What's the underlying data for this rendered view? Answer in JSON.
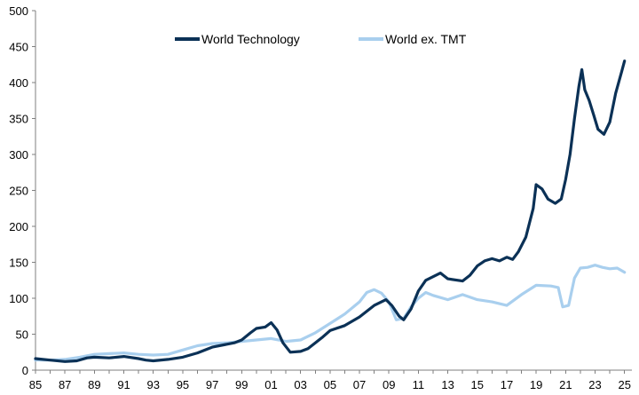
{
  "chart_data": {
    "type": "line",
    "xlim": [
      1985,
      2025.5
    ],
    "ylim": [
      0,
      500
    ],
    "y_ticks": [
      "0",
      "50",
      "100",
      "150",
      "200",
      "250",
      "300",
      "350",
      "400",
      "450",
      "500"
    ],
    "x_ticks": [
      "85",
      "87",
      "89",
      "91",
      "93",
      "95",
      "97",
      "99",
      "01",
      "03",
      "05",
      "07",
      "09",
      "11",
      "13",
      "15",
      "17",
      "19",
      "21",
      "23",
      "25"
    ],
    "grid": false,
    "legend_position": "top-center",
    "series": [
      {
        "name": "World Technology",
        "color": "#0b3156",
        "points": [
          [
            1985.0,
            16
          ],
          [
            1986.0,
            14
          ],
          [
            1987.0,
            12
          ],
          [
            1987.8,
            13
          ],
          [
            1988.5,
            17
          ],
          [
            1989.0,
            18
          ],
          [
            1990.0,
            17
          ],
          [
            1991.0,
            19
          ],
          [
            1992.0,
            16
          ],
          [
            1992.5,
            14
          ],
          [
            1993.0,
            13
          ],
          [
            1994.0,
            15
          ],
          [
            1995.0,
            18
          ],
          [
            1996.0,
            24
          ],
          [
            1997.0,
            32
          ],
          [
            1998.0,
            36
          ],
          [
            1998.5,
            38
          ],
          [
            1999.0,
            42
          ],
          [
            1999.6,
            52
          ],
          [
            2000.0,
            58
          ],
          [
            2000.6,
            60
          ],
          [
            2001.0,
            66
          ],
          [
            2001.4,
            56
          ],
          [
            2001.8,
            38
          ],
          [
            2002.3,
            25
          ],
          [
            2003.0,
            26
          ],
          [
            2003.5,
            30
          ],
          [
            2004.0,
            38
          ],
          [
            2004.5,
            46
          ],
          [
            2005.0,
            55
          ],
          [
            2006.0,
            62
          ],
          [
            2007.0,
            74
          ],
          [
            2008.0,
            90
          ],
          [
            2008.8,
            98
          ],
          [
            2009.2,
            90
          ],
          [
            2009.7,
            75
          ],
          [
            2010.0,
            70
          ],
          [
            2010.5,
            85
          ],
          [
            2011.0,
            110
          ],
          [
            2011.5,
            125
          ],
          [
            2012.0,
            130
          ],
          [
            2012.5,
            135
          ],
          [
            2013.0,
            127
          ],
          [
            2014.0,
            124
          ],
          [
            2014.5,
            132
          ],
          [
            2015.0,
            145
          ],
          [
            2015.5,
            152
          ],
          [
            2016.0,
            155
          ],
          [
            2016.5,
            152
          ],
          [
            2017.0,
            157
          ],
          [
            2017.4,
            154
          ],
          [
            2017.8,
            165
          ],
          [
            2018.3,
            185
          ],
          [
            2018.8,
            225
          ],
          [
            2019.0,
            258
          ],
          [
            2019.4,
            252
          ],
          [
            2019.8,
            238
          ],
          [
            2020.3,
            232
          ],
          [
            2020.7,
            238
          ],
          [
            2021.0,
            265
          ],
          [
            2021.3,
            300
          ],
          [
            2021.6,
            350
          ],
          [
            2021.9,
            395
          ],
          [
            2022.1,
            418
          ],
          [
            2022.3,
            390
          ],
          [
            2022.6,
            375
          ],
          [
            2022.9,
            355
          ],
          [
            2023.2,
            335
          ],
          [
            2023.6,
            328
          ],
          [
            2024.0,
            345
          ],
          [
            2024.4,
            385
          ],
          [
            2024.8,
            415
          ],
          [
            2025.0,
            430
          ]
        ]
      },
      {
        "name": "World ex. TMT",
        "color": "#a9cfee",
        "points": [
          [
            1985.0,
            14
          ],
          [
            1986.0,
            14
          ],
          [
            1987.0,
            15
          ],
          [
            1988.0,
            18
          ],
          [
            1989.0,
            22
          ],
          [
            1990.0,
            23
          ],
          [
            1991.0,
            24
          ],
          [
            1992.0,
            22
          ],
          [
            1993.0,
            21
          ],
          [
            1994.0,
            22
          ],
          [
            1995.0,
            28
          ],
          [
            1996.0,
            34
          ],
          [
            1997.0,
            37
          ],
          [
            1998.0,
            38
          ],
          [
            1999.0,
            40
          ],
          [
            2000.0,
            42
          ],
          [
            2001.0,
            44
          ],
          [
            2002.0,
            40
          ],
          [
            2003.0,
            42
          ],
          [
            2004.0,
            52
          ],
          [
            2005.0,
            65
          ],
          [
            2006.0,
            78
          ],
          [
            2007.0,
            95
          ],
          [
            2007.5,
            108
          ],
          [
            2008.0,
            112
          ],
          [
            2008.5,
            107
          ],
          [
            2009.0,
            95
          ],
          [
            2009.5,
            70
          ],
          [
            2010.0,
            72
          ],
          [
            2010.5,
            88
          ],
          [
            2011.0,
            100
          ],
          [
            2011.5,
            108
          ],
          [
            2012.0,
            104
          ],
          [
            2013.0,
            98
          ],
          [
            2014.0,
            105
          ],
          [
            2015.0,
            98
          ],
          [
            2016.0,
            95
          ],
          [
            2017.0,
            90
          ],
          [
            2018.0,
            105
          ],
          [
            2019.0,
            118
          ],
          [
            2020.0,
            117
          ],
          [
            2020.5,
            115
          ],
          [
            2020.8,
            88
          ],
          [
            2021.2,
            90
          ],
          [
            2021.6,
            128
          ],
          [
            2022.0,
            142
          ],
          [
            2022.5,
            143
          ],
          [
            2023.0,
            146
          ],
          [
            2023.5,
            143
          ],
          [
            2024.0,
            141
          ],
          [
            2024.5,
            142
          ],
          [
            2025.0,
            136
          ]
        ]
      }
    ]
  }
}
